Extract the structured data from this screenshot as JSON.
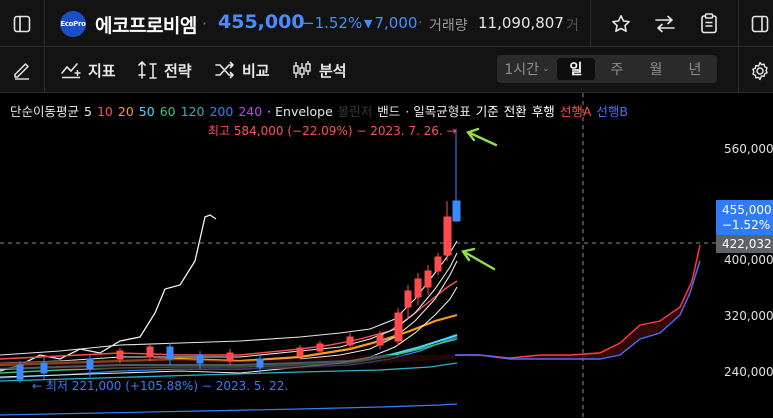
{
  "header": {
    "logo_text": "EcoPro",
    "stock_name": "에코프로비엠",
    "separator": "·",
    "price": "455,000",
    "change_pct": "−1.52%",
    "change_arrow": "▼",
    "change_abs": "7,000",
    "volume_sep": "·",
    "volume_label": "거래량",
    "volume_value": "11,090,807",
    "volume_cut": "거",
    "icons": [
      "sidebar-toggle-icon",
      "favorite-star-icon",
      "compare-arrows-icon",
      "clipboard-icon",
      "right-panel-icon"
    ]
  },
  "toolbar": {
    "draw_icon": "pencil-icon",
    "indicator_label": "지표",
    "strategy_label": "전략",
    "compare_label": "비교",
    "analysis_label": "분석",
    "timeframes": [
      {
        "label": "1시간",
        "has_dropdown": true,
        "active": false
      },
      {
        "label": "일",
        "active": true
      },
      {
        "label": "주",
        "active": false
      },
      {
        "label": "월",
        "active": false
      },
      {
        "label": "년",
        "active": false
      }
    ],
    "settings_icon": "gear-icon"
  },
  "legend": {
    "items": [
      {
        "text": "단순이동평균",
        "color": "#e6e6e6"
      },
      {
        "text": "5",
        "color": "#e6e6e6"
      },
      {
        "text": "10",
        "color": "#ff4d4d"
      },
      {
        "text": "20",
        "color": "#ff9a1f"
      },
      {
        "text": "50",
        "color": "#4fd6ff"
      },
      {
        "text": "60",
        "color": "#3cc46c"
      },
      {
        "text": "120",
        "color": "#2bb3c4"
      },
      {
        "text": "200",
        "color": "#2f80ff"
      },
      {
        "text": "240",
        "color": "#c040ff"
      },
      {
        "text": "· Envelope",
        "color": "#e6e6e6"
      },
      {
        "text": "볼린저",
        "color": "#3a3a3a"
      },
      {
        "text": "밴드",
        "color": "#e6e6e6"
      },
      {
        "text": "· 일목균형표",
        "color": "#e6e6e6"
      },
      {
        "text": "기준",
        "color": "#ffffff"
      },
      {
        "text": "전환",
        "color": "#ffffff"
      },
      {
        "text": "후행",
        "color": "#ffffff"
      },
      {
        "text": "선행A",
        "color": "#ff4d4d"
      },
      {
        "text": "선행B",
        "color": "#4a6cff"
      }
    ]
  },
  "annotations": {
    "high": "최고 584,000 (−22.09%) − 2023. 7. 26. →",
    "low": "← 최저 221,000 (+105.88%) − 2023. 5. 22."
  },
  "price_axis": {
    "labels": [
      "560,000",
      "400,000",
      "320,000",
      "240,000"
    ],
    "current_price": "455,000",
    "current_change": "−1.52%",
    "crosshair_price": "422,032"
  },
  "colors": {
    "up": "#ff4d4d",
    "down": "#3a8bff",
    "background": "#000000",
    "panel": "#131313",
    "annotation_arrow": "#8ee04a"
  }
}
